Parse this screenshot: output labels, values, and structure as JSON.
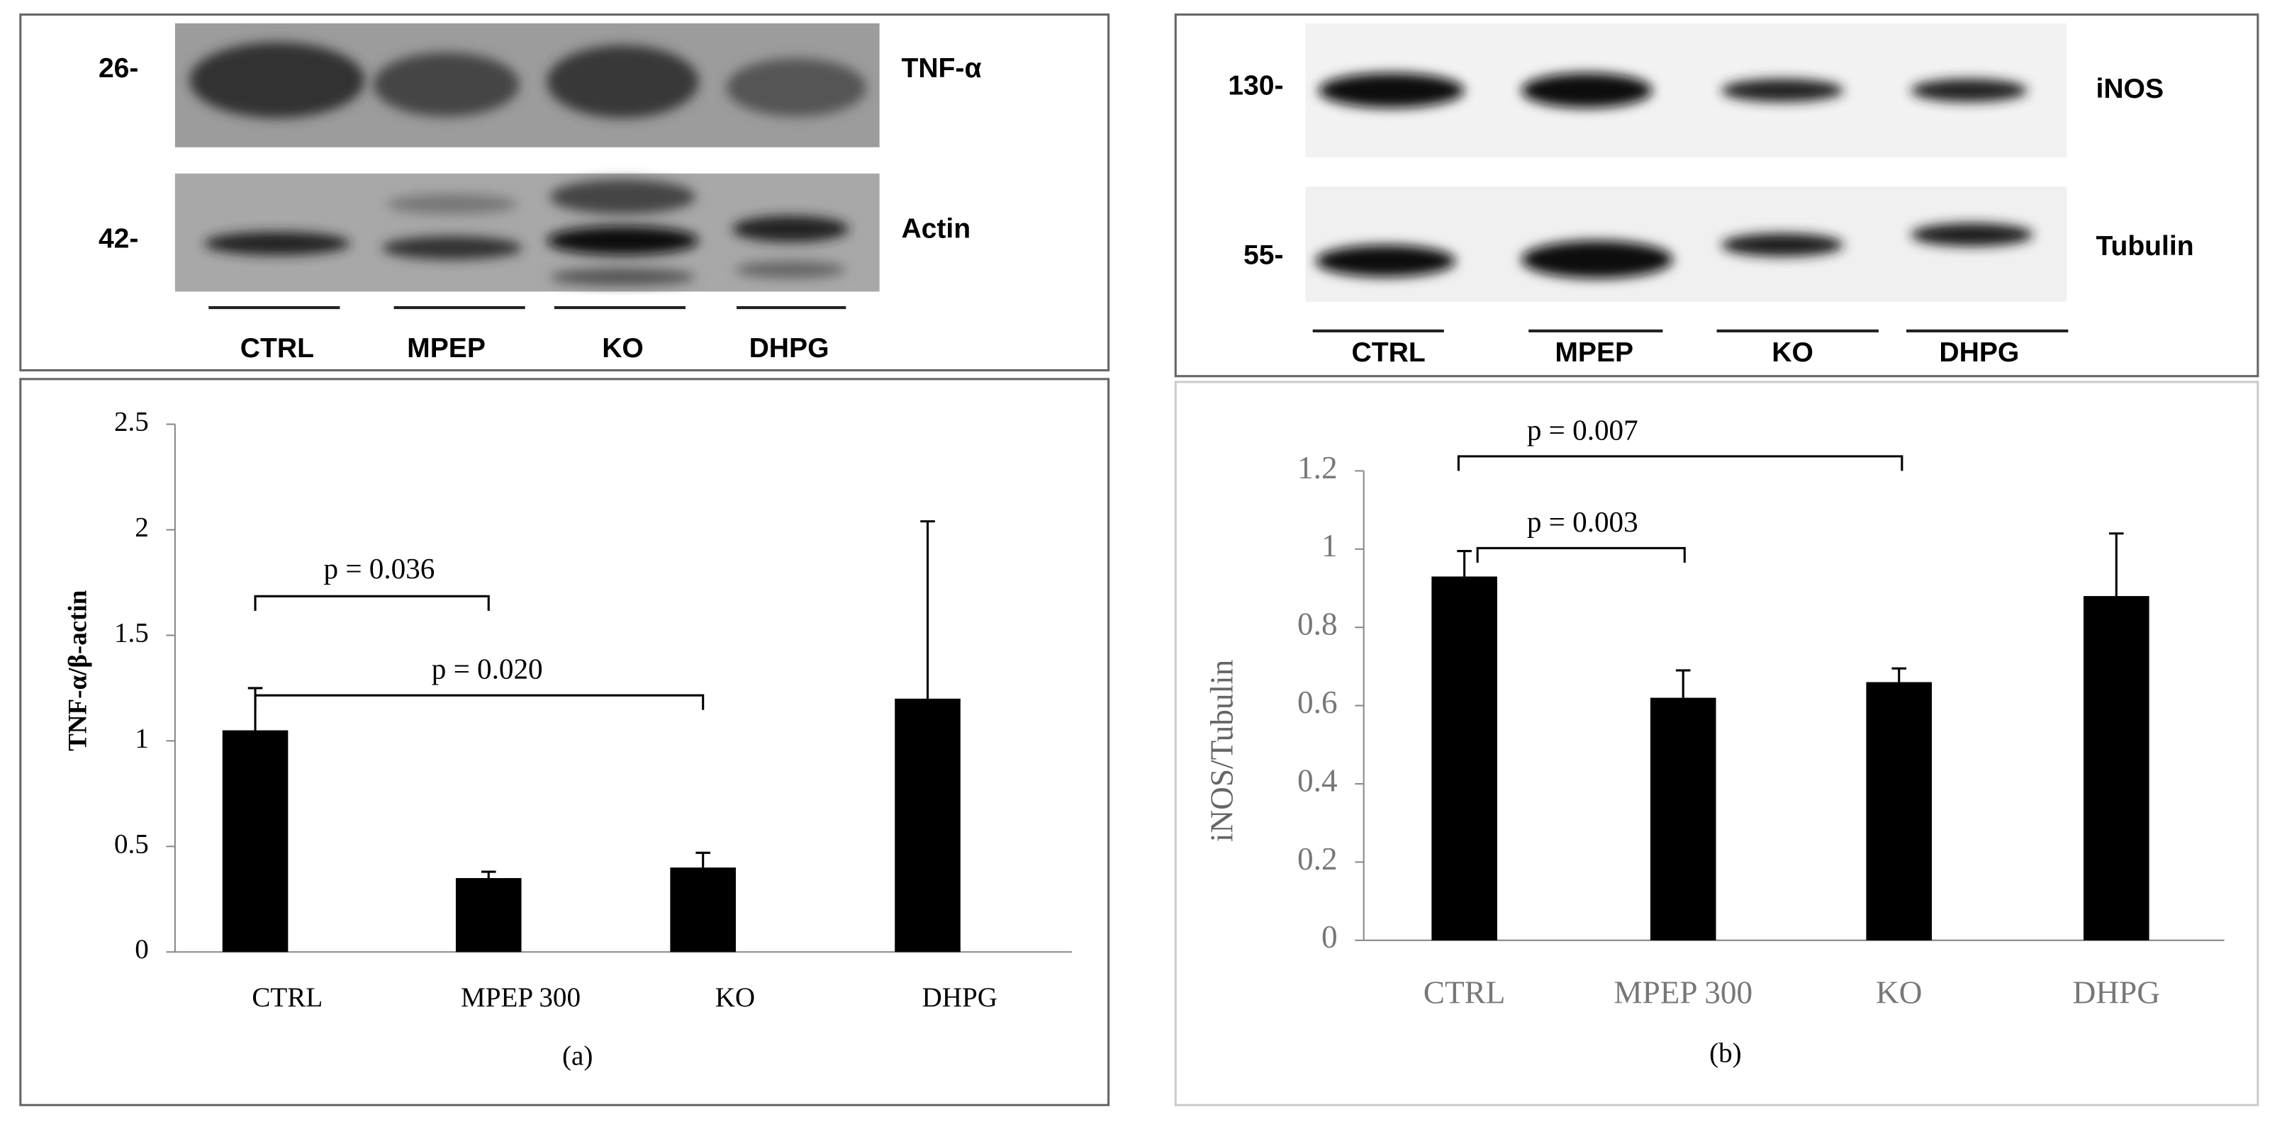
{
  "chart_data": [
    {
      "type": "bar",
      "panel_label": "(a)",
      "y_label": "TNF-α/β-actin",
      "categories": [
        "CTRL",
        "MPEP 300",
        "KO",
        "DHPG"
      ],
      "values": [
        1.05,
        0.35,
        0.4,
        1.2
      ],
      "errors": [
        0.2,
        0.03,
        0.07,
        0.84
      ],
      "color": "#000000",
      "ylim": [
        0,
        2.5
      ],
      "yticks": [
        0,
        0.5,
        1,
        1.5,
        2,
        2.5
      ],
      "annotations": [
        "p = 0.036",
        "p = 0.020"
      ],
      "blot": {
        "markers": [
          "26-",
          "42-"
        ],
        "proteins": [
          "TNF-α",
          "Actin"
        ],
        "lanes": [
          "CTRL",
          "MPEP",
          "KO",
          "DHPG"
        ]
      }
    },
    {
      "type": "bar",
      "panel_label": "(b)",
      "y_label": "iNOS/Tubulin",
      "categories": [
        "CTRL",
        "MPEP 300",
        "KO",
        "DHPG"
      ],
      "values": [
        0.93,
        0.62,
        0.66,
        0.88
      ],
      "errors": [
        0.065,
        0.07,
        0.035,
        0.16
      ],
      "color": "#000000",
      "ylim": [
        0,
        1.2
      ],
      "yticks": [
        0,
        0.2,
        0.4,
        0.6,
        0.8,
        1,
        1.2
      ],
      "annotations": [
        "p = 0.007",
        "p = 0.003"
      ],
      "blot": {
        "markers": [
          "130-",
          "55-"
        ],
        "proteins": [
          "iNOS",
          "Tubulin"
        ],
        "lanes": [
          "CTRL",
          "MPEP",
          "KO",
          "DHPG"
        ]
      }
    }
  ]
}
